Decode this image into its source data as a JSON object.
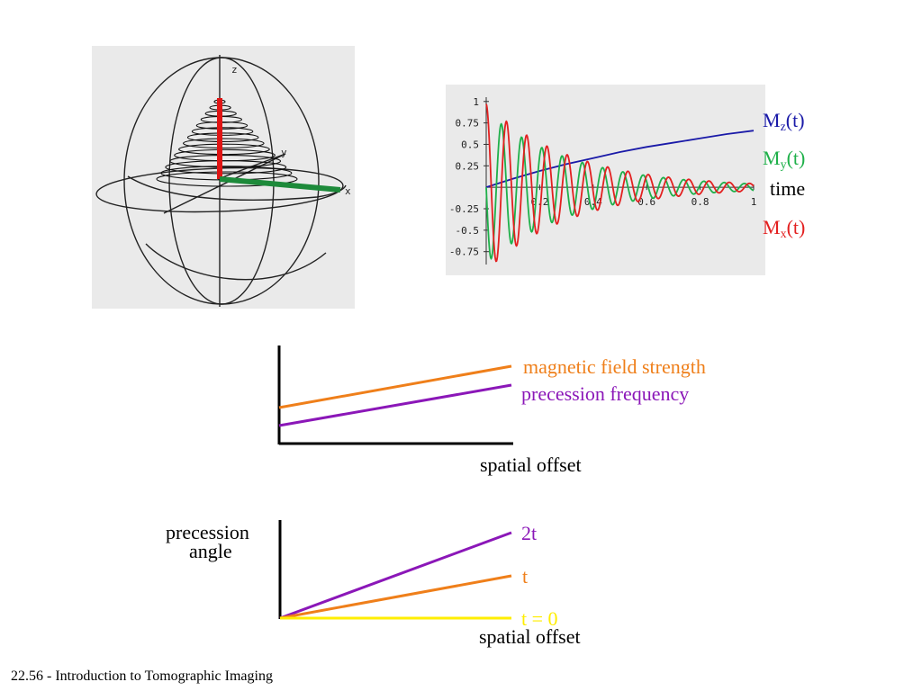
{
  "sphere": {
    "axis_z": "z",
    "axis_y": "y",
    "axis_x": "x",
    "colors": {
      "outline": "#222222",
      "z_vector": "#e01515",
      "x_vector": "#1d8a3a"
    }
  },
  "decay_chart": {
    "legend": {
      "mz_main": "M",
      "mz_sub": "z",
      "mz_tail": "(t)",
      "my_main": "M",
      "my_sub": "y",
      "my_tail": "(t)",
      "time": "time",
      "mx_main": "M",
      "mx_sub": "x",
      "mx_tail": "(t)"
    },
    "colors": {
      "mz": "#1a1aa8",
      "my": "#1fb04a",
      "mx": "#e32020"
    }
  },
  "chart_data": [
    {
      "type": "line",
      "xlabel": "time",
      "ylabel": "",
      "xlim": [
        0,
        1
      ],
      "ylim": [
        -0.9,
        1.05
      ],
      "x_ticks": [
        "0.2",
        "0.4",
        "0.6",
        "0.8",
        "1"
      ],
      "y_ticks": [
        "1",
        "0.75",
        "0.5",
        "0.25",
        "-0.25",
        "-0.5",
        "-0.75"
      ],
      "series": [
        {
          "name": "Mz(t)",
          "color": "#1a1aa8",
          "x": [
            0,
            0.1,
            0.2,
            0.3,
            0.4,
            0.5,
            0.6,
            0.7,
            0.8,
            0.9,
            1.0
          ],
          "y": [
            0,
            0.1,
            0.19,
            0.27,
            0.34,
            0.41,
            0.47,
            0.52,
            0.57,
            0.62,
            0.66
          ]
        },
        {
          "name": "My(t)",
          "color": "#1fb04a",
          "x": [
            0,
            0.02,
            0.04,
            0.06,
            0.08,
            0.1,
            0.12,
            0.14,
            0.16,
            0.18,
            0.2,
            0.25,
            0.3,
            0.35,
            0.4,
            0.5,
            0.6,
            0.7,
            0.8,
            0.9,
            1.0
          ],
          "y": [
            0,
            -0.85,
            0.05,
            0.78,
            0.1,
            -0.7,
            -0.1,
            0.6,
            0.12,
            -0.5,
            -0.08,
            0.4,
            -0.3,
            0.25,
            -0.2,
            0.12,
            -0.08,
            0.06,
            -0.04,
            0.03,
            -0.02
          ]
        },
        {
          "name": "Mx(t)",
          "color": "#e32020",
          "x": [
            0,
            0.02,
            0.04,
            0.06,
            0.08,
            0.1,
            0.12,
            0.14,
            0.16,
            0.18,
            0.2,
            0.25,
            0.3,
            0.35,
            0.4,
            0.5,
            0.6,
            0.7,
            0.8,
            0.9,
            1.0
          ],
          "y": [
            0.95,
            0.1,
            -0.8,
            0.0,
            0.72,
            0.05,
            -0.62,
            0.0,
            0.52,
            0.0,
            -0.42,
            0.3,
            -0.26,
            0.2,
            -0.16,
            0.1,
            -0.07,
            0.05,
            -0.03,
            0.02,
            -0.01
          ]
        }
      ]
    },
    {
      "type": "line",
      "xlabel": "spatial offset",
      "ylabel": "",
      "series": [
        {
          "name": "magnetic field strength",
          "color": "#ef7f1a",
          "x": [
            0,
            1
          ],
          "y": [
            0.4,
            0.85
          ]
        },
        {
          "name": "precession frequency",
          "color": "#8b17b8",
          "x": [
            0,
            1
          ],
          "y": [
            0.2,
            0.6
          ]
        }
      ]
    },
    {
      "type": "line",
      "xlabel": "spatial offset",
      "ylabel": "precession angle",
      "series": [
        {
          "name": "2t",
          "color": "#8b17b8",
          "x": [
            0,
            1
          ],
          "y": [
            0,
            0.9
          ]
        },
        {
          "name": "t",
          "color": "#ef7f1a",
          "x": [
            0,
            1
          ],
          "y": [
            0,
            0.45
          ]
        },
        {
          "name": "t = 0",
          "color": "#ffee00",
          "x": [
            0,
            1
          ],
          "y": [
            0,
            0
          ]
        }
      ]
    }
  ],
  "freq_chart": {
    "label_field": "magnetic field strength",
    "label_freq": "precession frequency",
    "xlabel": "spatial offset",
    "colors": {
      "field": "#ef7f1a",
      "freq": "#8b17b8"
    }
  },
  "angle_chart": {
    "ylabel_line1": "precession",
    "ylabel_line2": "angle",
    "label_2t": "2t",
    "label_t": "t",
    "label_t0": "t = 0",
    "xlabel": "spatial offset",
    "colors": {
      "t2": "#8b17b8",
      "t1": "#ef7f1a",
      "t0": "#ffee00"
    }
  },
  "footer": {
    "text": "22.56 - Introduction to Tomographic Imaging"
  }
}
